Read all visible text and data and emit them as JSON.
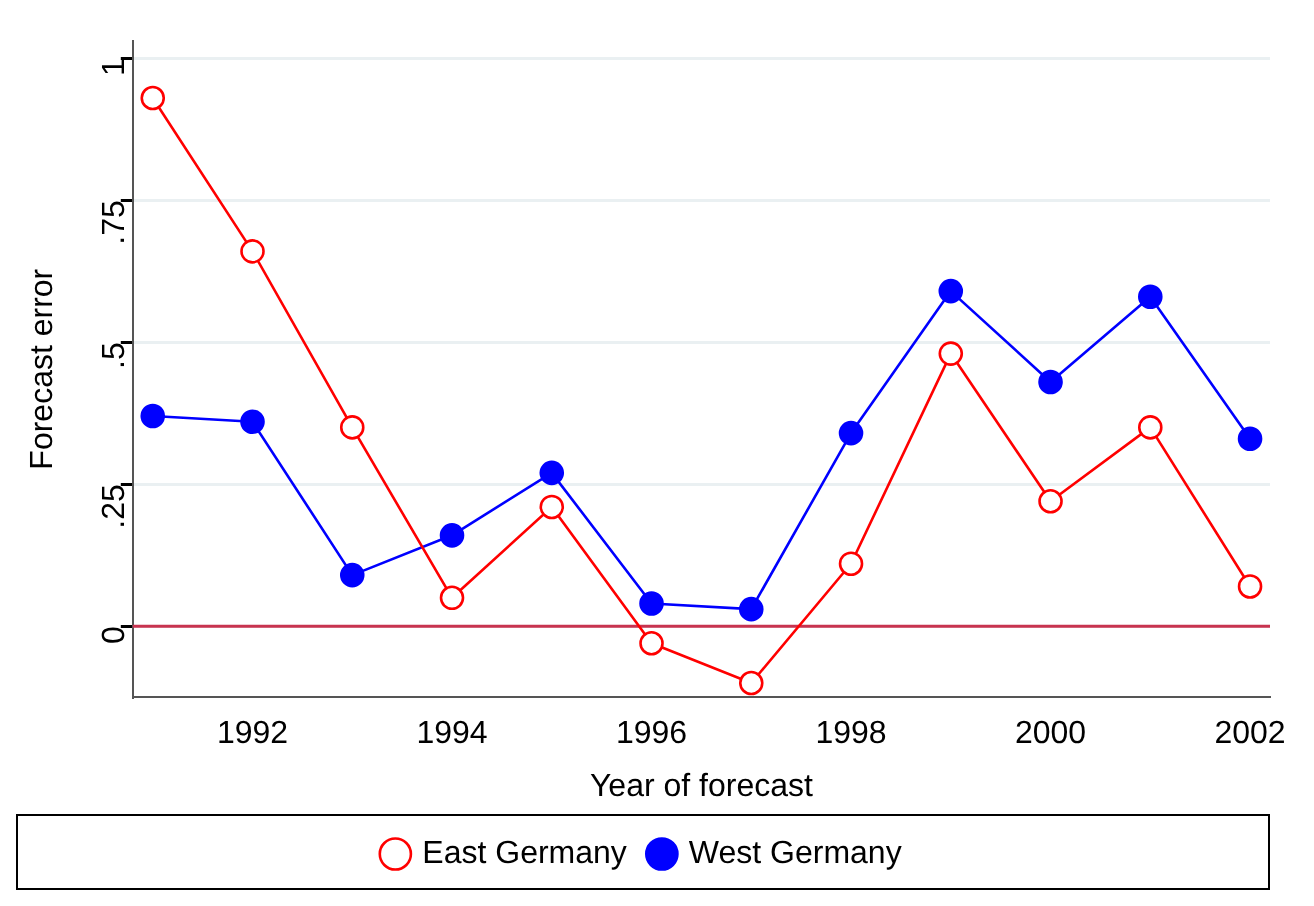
{
  "chart_data": {
    "type": "line",
    "xlabel": "Year of forecast",
    "ylabel": "Forecast error",
    "x": [
      1991,
      1992,
      1993,
      1994,
      1995,
      1996,
      1997,
      1998,
      1999,
      2000,
      2001,
      2002
    ],
    "series": [
      {
        "name": "East Germany",
        "color": "#ff0000",
        "values": [
          0.93,
          0.66,
          0.35,
          0.05,
          0.21,
          -0.03,
          -0.1,
          0.11,
          0.48,
          0.22,
          0.35,
          0.07
        ]
      },
      {
        "name": "West Germany",
        "color": "#0000ff",
        "values": [
          0.37,
          0.36,
          0.09,
          0.16,
          0.27,
          0.04,
          0.03,
          0.34,
          0.59,
          0.43,
          0.58,
          0.33
        ]
      }
    ],
    "xlim": [
      1990.8,
      2002.2
    ],
    "xticks": [
      1992,
      1994,
      1996,
      1998,
      2000,
      2002
    ],
    "ylim": [
      -0.125,
      1.03
    ],
    "yticks": [
      0,
      {
        "value": 0.25,
        "label": ".25"
      },
      {
        "value": 0.5,
        "label": ".5"
      },
      {
        "value": 0.75,
        "label": ".75"
      },
      1
    ],
    "ref_lines": [
      {
        "axis": "y",
        "value": 0,
        "color": "#c8334f"
      }
    ],
    "grid": "y",
    "legend": "bottom",
    "marker": "circle",
    "line_style": "solid"
  }
}
